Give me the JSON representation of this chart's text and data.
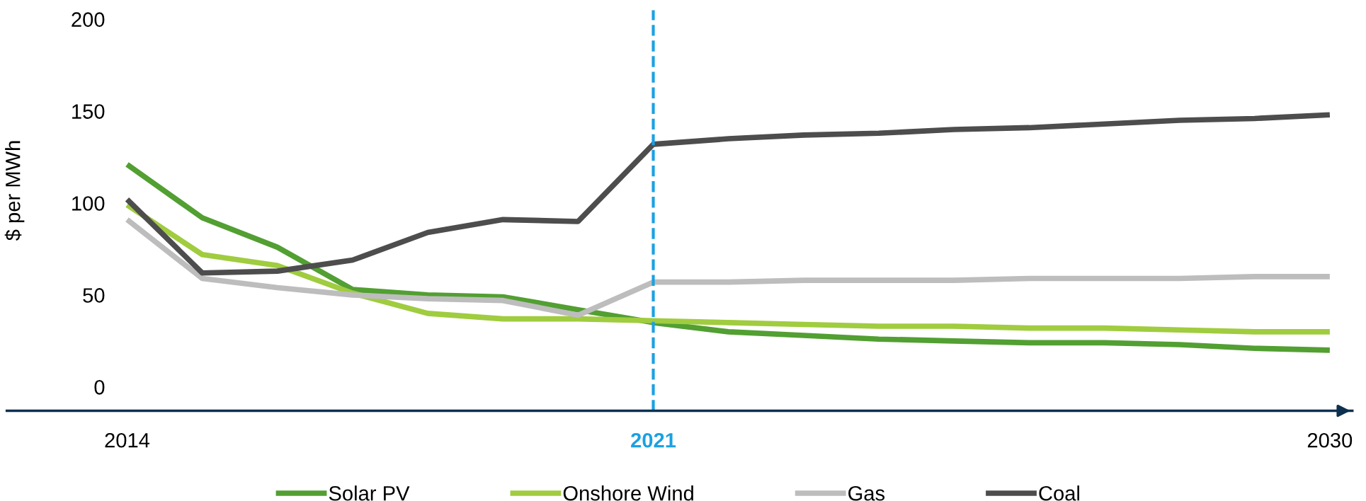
{
  "chart_data": {
    "type": "line",
    "ylabel": "$ per MWh",
    "x": [
      2014,
      2015,
      2016,
      2017,
      2018,
      2019,
      2020,
      2021,
      2022,
      2023,
      2024,
      2025,
      2026,
      2027,
      2028,
      2029,
      2030
    ],
    "series": [
      {
        "name": "Solar PV",
        "color": "#529f32",
        "values": [
          121,
          92,
          76,
          53,
          50,
          49,
          42,
          35,
          30,
          28,
          26,
          25,
          24,
          24,
          23,
          21,
          20
        ]
      },
      {
        "name": "Onshore Wind",
        "color": "#a0cc3f",
        "values": [
          99,
          72,
          66,
          51,
          40,
          37,
          37,
          36,
          35,
          34,
          33,
          33,
          32,
          32,
          31,
          30,
          30
        ]
      },
      {
        "name": "Gas",
        "color": "#bdbdbd",
        "values": [
          91,
          59,
          54,
          50,
          48,
          47,
          39,
          57,
          57,
          58,
          58,
          58,
          59,
          59,
          59,
          60,
          60
        ]
      },
      {
        "name": "Coal",
        "color": "#4d4d4d",
        "values": [
          102,
          62,
          63,
          69,
          84,
          91,
          90,
          132,
          135,
          137,
          138,
          140,
          141,
          143,
          145,
          146,
          148
        ]
      }
    ],
    "xlim": [
      2012.4,
      2030.3
    ],
    "xticks": [
      2014,
      2021,
      2030
    ],
    "ylim": [
      -13,
      205
    ],
    "yticks": [
      0,
      50,
      100,
      150,
      200
    ],
    "ref_lines": [
      {
        "axis": "x",
        "value": 2021,
        "color": "#1ba1e2",
        "line_style": "dashed"
      }
    ],
    "grid": false,
    "legend": "bottom",
    "marker": "none",
    "line_style": "solid"
  }
}
